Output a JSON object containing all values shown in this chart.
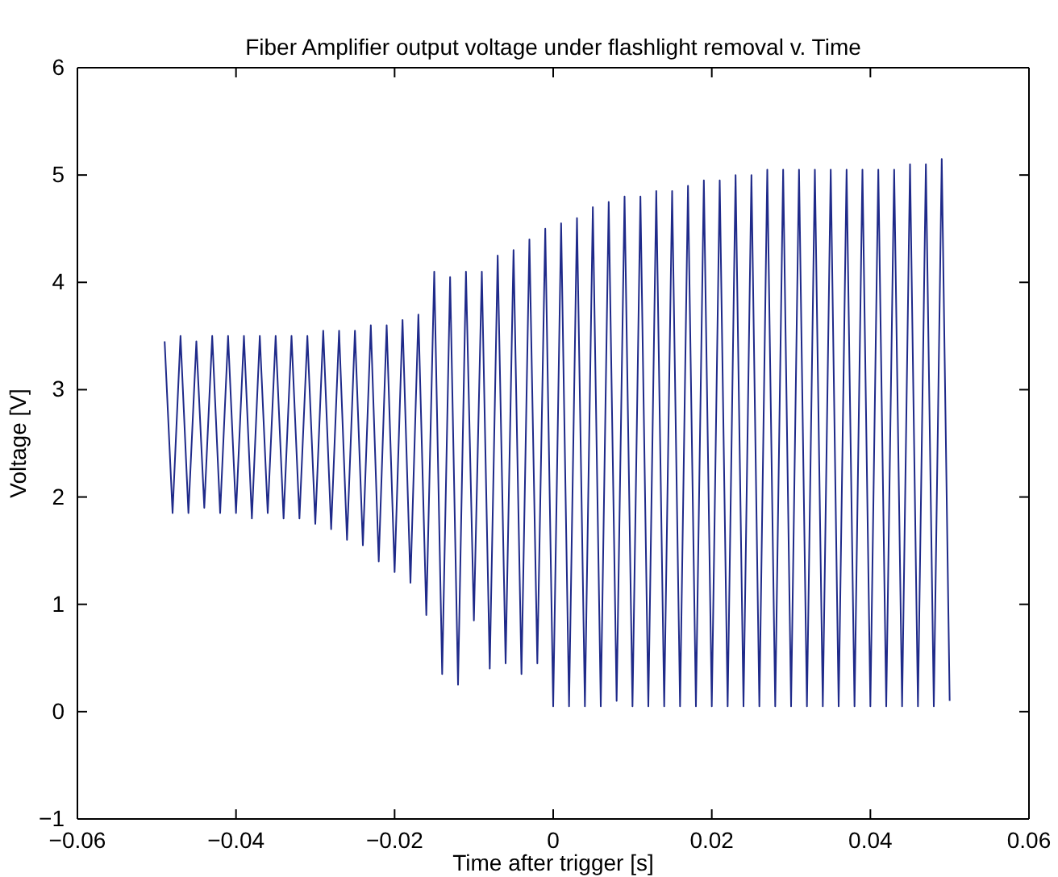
{
  "chart_data": {
    "type": "line",
    "title": "Fiber Amplifier output voltage under flashlight removal v. Time",
    "xlabel": "Time after trigger [s]",
    "ylabel": "Voltage [V]",
    "x": [
      -0.049,
      -0.048,
      -0.047,
      -0.046,
      -0.045,
      -0.044,
      -0.043,
      -0.042,
      -0.041,
      -0.04,
      -0.039,
      -0.038,
      -0.037,
      -0.036,
      -0.035,
      -0.034,
      -0.033,
      -0.032,
      -0.031,
      -0.03,
      -0.029,
      -0.028,
      -0.027,
      -0.026,
      -0.025,
      -0.024,
      -0.023,
      -0.022,
      -0.021,
      -0.02,
      -0.019,
      -0.018,
      -0.017,
      -0.016,
      -0.015,
      -0.014,
      -0.013,
      -0.012,
      -0.011,
      -0.01,
      -0.009,
      -0.008,
      -0.007,
      -0.006,
      -0.005,
      -0.004,
      -0.003,
      -0.002,
      -0.001,
      0.0,
      0.001,
      0.002,
      0.003,
      0.004,
      0.005,
      0.006,
      0.007,
      0.008,
      0.009,
      0.01,
      0.011,
      0.012,
      0.013,
      0.014,
      0.015,
      0.016,
      0.017,
      0.018,
      0.019,
      0.02,
      0.021,
      0.022,
      0.023,
      0.024,
      0.025,
      0.026,
      0.027,
      0.028,
      0.029,
      0.03,
      0.031,
      0.032,
      0.033,
      0.034,
      0.035,
      0.036,
      0.037,
      0.038,
      0.039,
      0.04,
      0.041,
      0.042,
      0.043,
      0.044,
      0.045,
      0.046,
      0.047,
      0.048,
      0.049,
      0.05
    ],
    "series": [
      {
        "color": "#1f2a8a",
        "values": [
          3.45,
          1.85,
          3.5,
          1.85,
          3.45,
          1.9,
          3.5,
          1.85,
          3.5,
          1.85,
          3.5,
          1.8,
          3.5,
          1.85,
          3.5,
          1.8,
          3.5,
          1.8,
          3.5,
          1.75,
          3.55,
          1.7,
          3.55,
          1.6,
          3.55,
          1.55,
          3.6,
          1.4,
          3.6,
          1.3,
          3.65,
          1.2,
          3.7,
          0.9,
          4.1,
          0.35,
          4.05,
          0.25,
          4.1,
          0.85,
          4.1,
          0.4,
          4.25,
          0.45,
          4.3,
          0.35,
          4.4,
          0.45,
          4.5,
          0.05,
          4.55,
          0.05,
          4.6,
          0.05,
          4.7,
          0.05,
          4.75,
          0.1,
          4.8,
          0.05,
          4.8,
          0.05,
          4.85,
          0.05,
          4.85,
          0.05,
          4.9,
          0.05,
          4.95,
          0.05,
          4.95,
          0.05,
          5.0,
          0.05,
          5.0,
          0.05,
          5.05,
          0.05,
          5.05,
          0.05,
          5.05,
          0.05,
          5.05,
          0.05,
          5.05,
          0.05,
          5.05,
          0.05,
          5.05,
          0.05,
          5.05,
          0.05,
          5.05,
          0.05,
          5.1,
          0.05,
          5.1,
          0.05,
          5.15,
          0.1
        ]
      }
    ],
    "xlim": [
      -0.06,
      0.06
    ],
    "xticks": [
      {
        "value": -0.06,
        "label": "−0.06"
      },
      {
        "value": -0.04,
        "label": "−0.04"
      },
      {
        "value": -0.02,
        "label": "−0.02"
      },
      0,
      0.02,
      0.04,
      0.06
    ],
    "ylim": [
      -1,
      6
    ],
    "yticks": [
      {
        "value": -1,
        "label": "−1"
      },
      0,
      1,
      2,
      3,
      4,
      5,
      6
    ]
  }
}
